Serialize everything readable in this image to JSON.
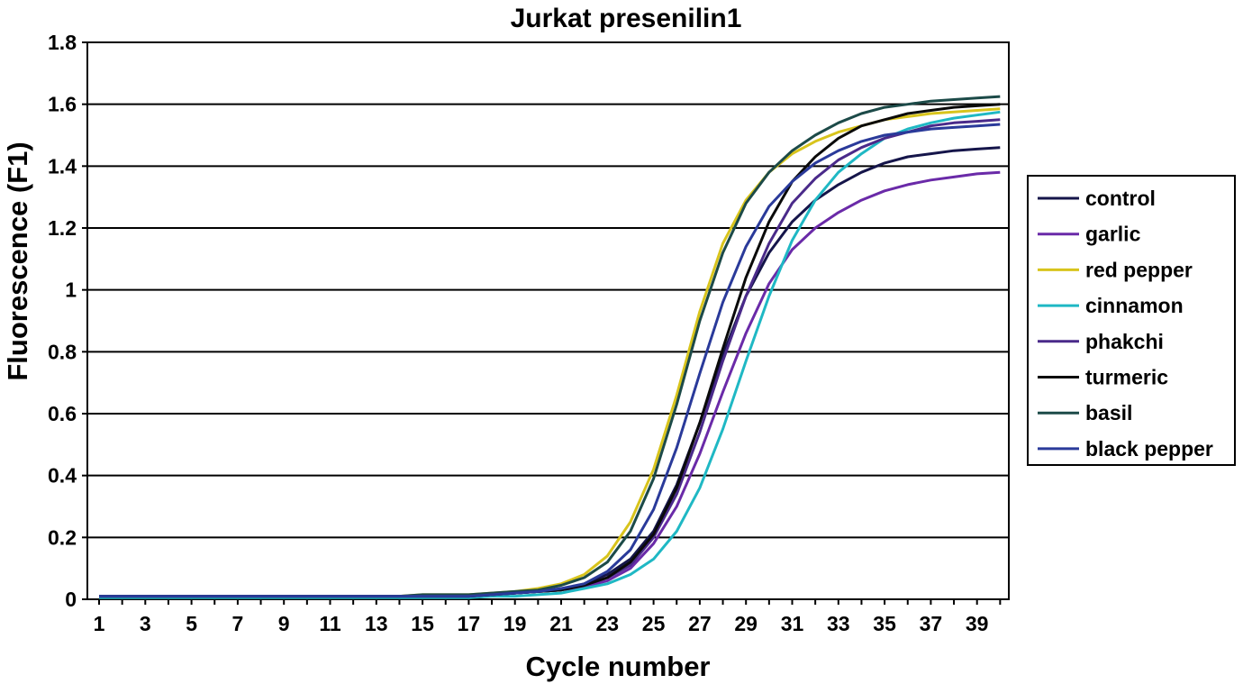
{
  "chart_data": {
    "type": "line",
    "title": "Jurkat presenilin1",
    "xlabel": "Cycle number",
    "ylabel": "Fluorescence (F1)",
    "xlim": [
      1,
      40
    ],
    "ylim": [
      0,
      1.8
    ],
    "x_ticks": [
      1,
      3,
      5,
      7,
      9,
      11,
      13,
      15,
      17,
      19,
      21,
      23,
      25,
      27,
      29,
      31,
      33,
      35,
      37,
      39
    ],
    "y_ticks": [
      0,
      0.2,
      0.4,
      0.6,
      0.8,
      1,
      1.2,
      1.4,
      1.6,
      1.8
    ],
    "y_tick_labels": [
      "0",
      "0.2",
      "0.4",
      "0.6",
      "0.8",
      "1",
      "1.2",
      "1.4",
      "1.6",
      "1.8"
    ],
    "grid": "horizontal",
    "legend_position": "right",
    "x": [
      1,
      2,
      3,
      4,
      5,
      6,
      7,
      8,
      9,
      10,
      11,
      12,
      13,
      14,
      15,
      16,
      17,
      18,
      19,
      20,
      21,
      22,
      23,
      24,
      25,
      26,
      27,
      28,
      29,
      30,
      31,
      32,
      33,
      34,
      35,
      36,
      37,
      38,
      39,
      40
    ],
    "series": [
      {
        "name": "control",
        "color": "#15154a",
        "values": [
          0.01,
          0.01,
          0.01,
          0.01,
          0.01,
          0.01,
          0.01,
          0.01,
          0.01,
          0.01,
          0.01,
          0.01,
          0.01,
          0.01,
          0.01,
          0.01,
          0.01,
          0.015,
          0.02,
          0.025,
          0.03,
          0.05,
          0.08,
          0.13,
          0.22,
          0.37,
          0.57,
          0.79,
          0.98,
          1.12,
          1.22,
          1.29,
          1.34,
          1.38,
          1.41,
          1.43,
          1.44,
          1.45,
          1.455,
          1.46
        ]
      },
      {
        "name": "garlic",
        "color": "#6a2aa8",
        "values": [
          0.01,
          0.01,
          0.01,
          0.01,
          0.01,
          0.01,
          0.01,
          0.01,
          0.01,
          0.01,
          0.01,
          0.01,
          0.01,
          0.01,
          0.01,
          0.01,
          0.01,
          0.015,
          0.02,
          0.025,
          0.03,
          0.04,
          0.06,
          0.1,
          0.18,
          0.3,
          0.47,
          0.67,
          0.86,
          1.02,
          1.13,
          1.2,
          1.25,
          1.29,
          1.32,
          1.34,
          1.355,
          1.365,
          1.375,
          1.38
        ]
      },
      {
        "name": "red pepper",
        "color": "#d8c41c",
        "values": [
          0.01,
          0.01,
          0.01,
          0.01,
          0.01,
          0.01,
          0.01,
          0.01,
          0.01,
          0.01,
          0.01,
          0.01,
          0.01,
          0.01,
          0.015,
          0.015,
          0.015,
          0.02,
          0.025,
          0.035,
          0.05,
          0.08,
          0.14,
          0.25,
          0.42,
          0.66,
          0.93,
          1.15,
          1.29,
          1.38,
          1.44,
          1.48,
          1.51,
          1.53,
          1.55,
          1.56,
          1.57,
          1.575,
          1.58,
          1.585
        ]
      },
      {
        "name": "cinnamon",
        "color": "#1fb8c4",
        "values": [
          0.005,
          0.005,
          0.005,
          0.005,
          0.005,
          0.005,
          0.005,
          0.005,
          0.005,
          0.005,
          0.005,
          0.005,
          0.005,
          0.005,
          0.005,
          0.005,
          0.005,
          0.01,
          0.01,
          0.015,
          0.02,
          0.035,
          0.05,
          0.08,
          0.13,
          0.22,
          0.36,
          0.55,
          0.77,
          0.98,
          1.16,
          1.29,
          1.38,
          1.44,
          1.49,
          1.52,
          1.54,
          1.555,
          1.565,
          1.575
        ]
      },
      {
        "name": "phakchi",
        "color": "#4a2a8a",
        "values": [
          0.01,
          0.01,
          0.01,
          0.01,
          0.01,
          0.01,
          0.01,
          0.01,
          0.01,
          0.01,
          0.01,
          0.01,
          0.01,
          0.01,
          0.01,
          0.01,
          0.01,
          0.015,
          0.02,
          0.025,
          0.03,
          0.045,
          0.07,
          0.11,
          0.2,
          0.34,
          0.54,
          0.77,
          0.98,
          1.15,
          1.28,
          1.36,
          1.42,
          1.46,
          1.49,
          1.51,
          1.53,
          1.54,
          1.545,
          1.55
        ]
      },
      {
        "name": "turmeric",
        "color": "#0a0a0a",
        "values": [
          0.01,
          0.01,
          0.01,
          0.01,
          0.01,
          0.01,
          0.01,
          0.01,
          0.01,
          0.01,
          0.01,
          0.01,
          0.01,
          0.01,
          0.01,
          0.01,
          0.01,
          0.015,
          0.02,
          0.025,
          0.03,
          0.045,
          0.07,
          0.12,
          0.21,
          0.36,
          0.57,
          0.81,
          1.04,
          1.22,
          1.35,
          1.43,
          1.49,
          1.53,
          1.55,
          1.57,
          1.58,
          1.59,
          1.595,
          1.6
        ]
      },
      {
        "name": "basil",
        "color": "#1c4a48",
        "values": [
          0.01,
          0.01,
          0.01,
          0.01,
          0.01,
          0.01,
          0.01,
          0.01,
          0.01,
          0.01,
          0.01,
          0.01,
          0.01,
          0.01,
          0.015,
          0.015,
          0.015,
          0.02,
          0.025,
          0.03,
          0.045,
          0.07,
          0.12,
          0.22,
          0.39,
          0.63,
          0.9,
          1.12,
          1.28,
          1.38,
          1.45,
          1.5,
          1.54,
          1.57,
          1.59,
          1.6,
          1.61,
          1.615,
          1.62,
          1.625
        ]
      },
      {
        "name": "black pepper",
        "color": "#2a3a9a",
        "values": [
          0.01,
          0.01,
          0.01,
          0.01,
          0.01,
          0.01,
          0.01,
          0.01,
          0.01,
          0.01,
          0.01,
          0.01,
          0.01,
          0.01,
          0.01,
          0.01,
          0.01,
          0.015,
          0.02,
          0.025,
          0.035,
          0.05,
          0.09,
          0.16,
          0.29,
          0.49,
          0.73,
          0.96,
          1.14,
          1.27,
          1.35,
          1.41,
          1.45,
          1.48,
          1.5,
          1.51,
          1.52,
          1.525,
          1.53,
          1.535
        ]
      }
    ]
  }
}
